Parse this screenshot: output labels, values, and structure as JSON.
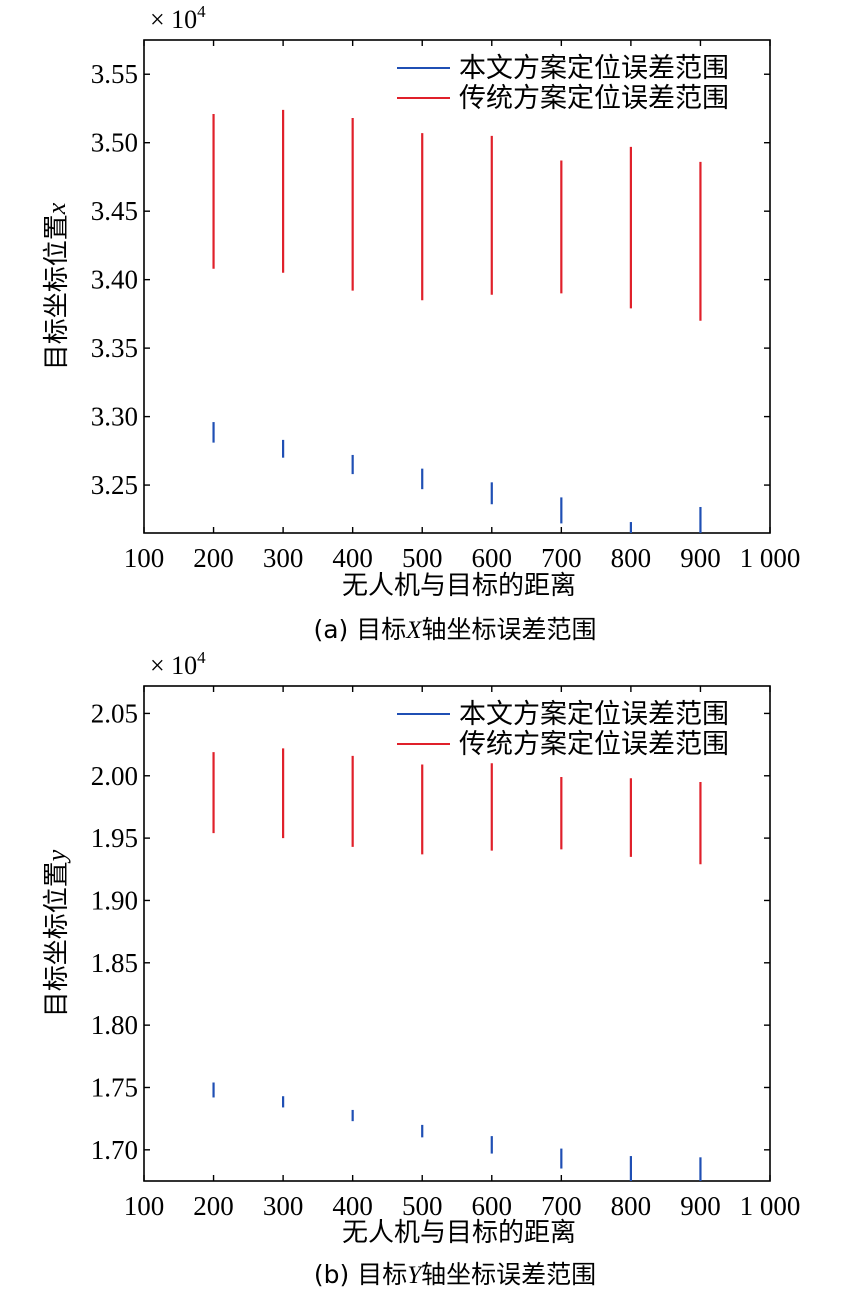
{
  "chart_data": [
    {
      "type": "error-range",
      "caption_prefix": "(a) 目标",
      "caption_var": "X",
      "caption_suffix": "轴坐标误差范围",
      "xlabel": "无人机与目标的距离",
      "ylabel_text": "目标坐标位置",
      "ylabel_var": "x",
      "multiplier_base": "× 10",
      "multiplier_exp": "4",
      "xlim": [
        100,
        1000
      ],
      "ylim": [
        3.215,
        3.575
      ],
      "xticks": [
        100,
        200,
        300,
        400,
        500,
        600,
        700,
        800,
        900,
        1000
      ],
      "xtick_labels": [
        "100",
        "200",
        "300",
        "400",
        "500",
        "600",
        "700",
        "800",
        "900",
        "1 000"
      ],
      "yticks": [
        3.25,
        3.3,
        3.35,
        3.4,
        3.45,
        3.5,
        3.55
      ],
      "ytick_labels": [
        "3.25",
        "3.30",
        "3.35",
        "3.40",
        "3.45",
        "3.50",
        "3.55"
      ],
      "legend": [
        {
          "label": "本文方案定位误差范围",
          "color": "#1f4fb4"
        },
        {
          "label": "传统方案定位误差范围",
          "color": "#e0202a"
        }
      ],
      "series": [
        {
          "name": "本文方案定位误差范围",
          "color": "#1f4fb4",
          "x": [
            200,
            300,
            400,
            500,
            600,
            700,
            800,
            900
          ],
          "low": [
            3.281,
            3.27,
            3.258,
            3.247,
            3.236,
            3.222,
            3.214,
            3.214
          ],
          "high": [
            3.296,
            3.283,
            3.272,
            3.262,
            3.252,
            3.241,
            3.223,
            3.234
          ]
        },
        {
          "name": "传统方案定位误差范围",
          "color": "#e0202a",
          "x": [
            200,
            300,
            400,
            500,
            600,
            700,
            800,
            900
          ],
          "low": [
            3.408,
            3.405,
            3.392,
            3.385,
            3.389,
            3.39,
            3.379,
            3.37
          ],
          "high": [
            3.521,
            3.524,
            3.518,
            3.507,
            3.505,
            3.487,
            3.497,
            3.486
          ]
        }
      ]
    },
    {
      "type": "error-range",
      "caption_prefix": "(b) 目标",
      "caption_var": "Y",
      "caption_suffix": "轴坐标误差范围",
      "xlabel": "无人机与目标的距离",
      "ylabel_text": "目标坐标位置",
      "ylabel_var": "y",
      "multiplier_base": "× 10",
      "multiplier_exp": "4",
      "xlim": [
        100,
        1000
      ],
      "ylim": [
        1.675,
        2.072
      ],
      "xticks": [
        100,
        200,
        300,
        400,
        500,
        600,
        700,
        800,
        900,
        1000
      ],
      "xtick_labels": [
        "100",
        "200",
        "300",
        "400",
        "500",
        "600",
        "700",
        "800",
        "900",
        "1 000"
      ],
      "yticks": [
        1.7,
        1.75,
        1.8,
        1.85,
        1.9,
        1.95,
        2.0,
        2.05
      ],
      "ytick_labels": [
        "1.70",
        "1.75",
        "1.80",
        "1.85",
        "1.90",
        "1.95",
        "2.00",
        "2.05"
      ],
      "legend": [
        {
          "label": "本文方案定位误差范围",
          "color": "#1f4fb4"
        },
        {
          "label": "传统方案定位误差范围",
          "color": "#e0202a"
        }
      ],
      "series": [
        {
          "name": "本文方案定位误差范围",
          "color": "#1f4fb4",
          "x": [
            200,
            300,
            400,
            500,
            600,
            700,
            800,
            900
          ],
          "low": [
            1.742,
            1.734,
            1.723,
            1.71,
            1.697,
            1.685,
            1.675,
            1.675
          ],
          "high": [
            1.754,
            1.743,
            1.732,
            1.72,
            1.711,
            1.701,
            1.695,
            1.694
          ]
        },
        {
          "name": "传统方案定位误差范围",
          "color": "#e0202a",
          "x": [
            200,
            300,
            400,
            500,
            600,
            700,
            800,
            900
          ],
          "low": [
            1.954,
            1.95,
            1.943,
            1.937,
            1.94,
            1.941,
            1.935,
            1.929
          ],
          "high": [
            2.019,
            2.022,
            2.016,
            2.009,
            2.01,
            1.999,
            1.998,
            1.995
          ]
        }
      ]
    }
  ]
}
